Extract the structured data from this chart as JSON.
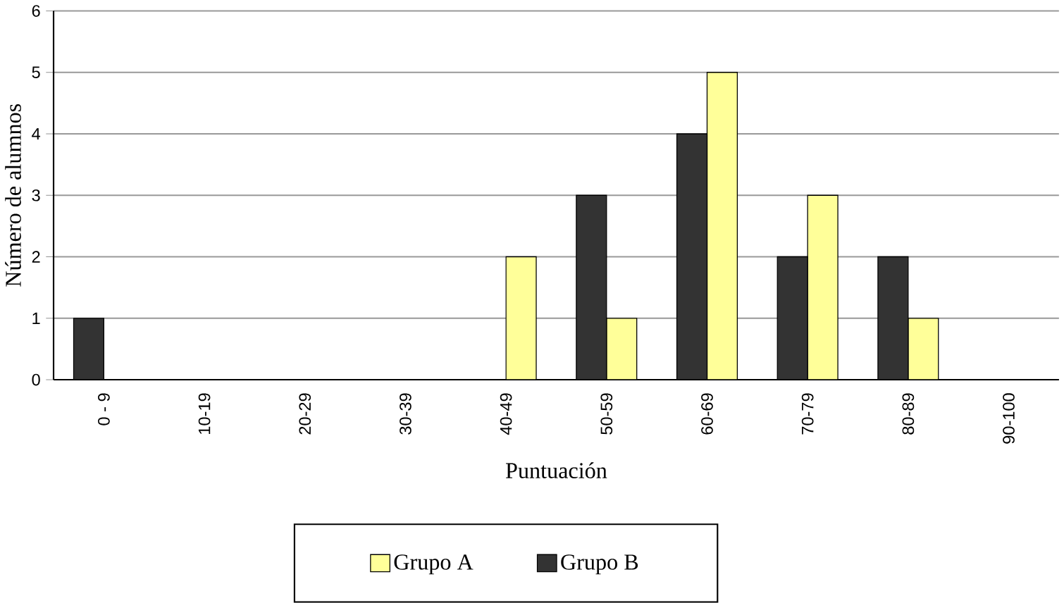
{
  "chart_data": {
    "type": "bar",
    "xlabel": "Puntuación",
    "ylabel": "Número de alumnos",
    "categories": [
      "0 - 9",
      "10-19",
      "20-29",
      "30-39",
      "40-49",
      "50-59",
      "60-69",
      "70-79",
      "80-89",
      "90-100"
    ],
    "series": [
      {
        "name": "Grupo A",
        "color": "#ffff99",
        "values": [
          null,
          null,
          null,
          null,
          2,
          1,
          5,
          3,
          1,
          null
        ]
      },
      {
        "name": "Grupo B",
        "color": "#333333",
        "values": [
          1,
          null,
          null,
          null,
          null,
          3,
          4,
          2,
          2,
          null
        ]
      }
    ],
    "ylim": [
      0,
      6
    ],
    "yticks": [
      0,
      1,
      2,
      3,
      4,
      5,
      6
    ],
    "grid": "y",
    "legend": "bottom"
  }
}
